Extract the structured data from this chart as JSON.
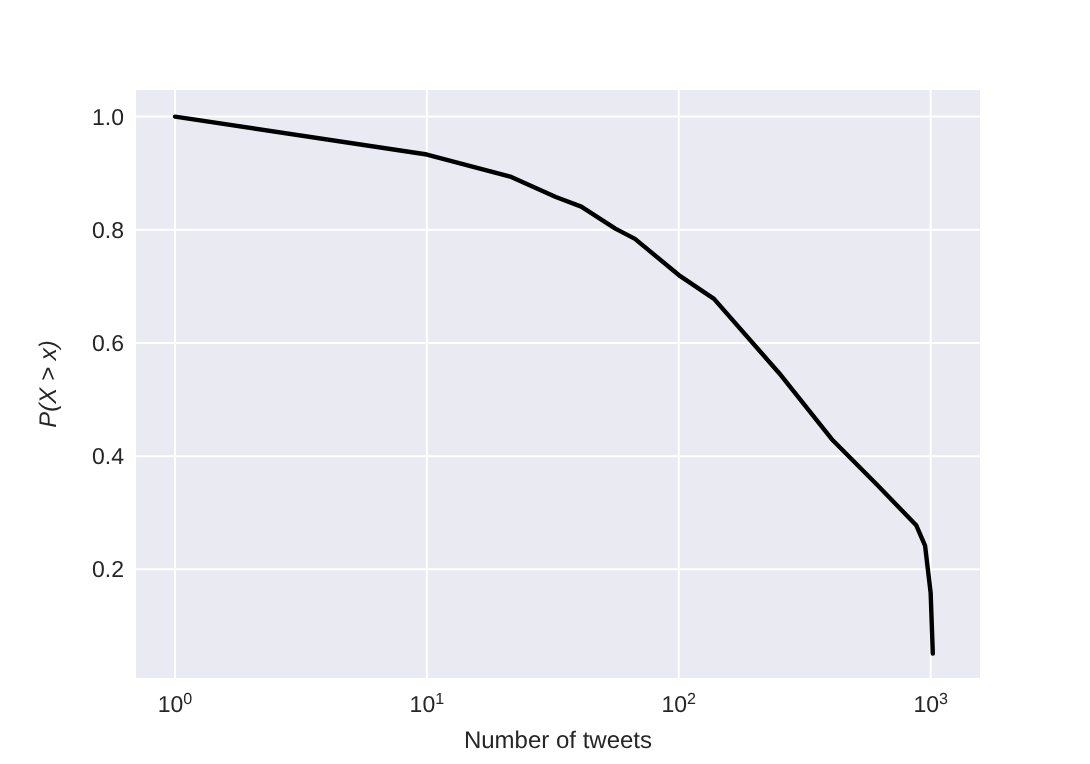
{
  "chart_data": {
    "type": "line",
    "xlabel": "Number of tweets",
    "ylabel": "P(X > x)",
    "log": "x",
    "grid": true,
    "marker": "none",
    "line_style": "solid",
    "xlim": [
      0.7,
      1570
    ],
    "ylim": [
      0.008,
      1.047
    ],
    "xticks": [
      {
        "value": 1,
        "label": "10$^{0}$"
      },
      {
        "value": 10,
        "label": "10$^{1}$"
      },
      {
        "value": 100,
        "label": "10$^{2}$"
      },
      {
        "value": 1000,
        "label": "10$^{3}$"
      }
    ],
    "yticks": [
      0.2,
      0.4,
      0.6,
      0.8,
      {
        "value": 1,
        "label": "1.0"
      }
    ],
    "series": [
      {
        "color": "#000000",
        "x": [
          1,
          10,
          21.4,
          32.5,
          41,
          56,
          67,
          100,
          138,
          250,
          405,
          614,
          876,
          950,
          1000,
          1020
        ],
        "values": [
          1.0,
          0.933,
          0.894,
          0.858,
          0.841,
          0.802,
          0.784,
          0.72,
          0.678,
          0.547,
          0.43,
          0.349,
          0.278,
          0.242,
          0.158,
          0.051
        ]
      }
    ]
  }
}
